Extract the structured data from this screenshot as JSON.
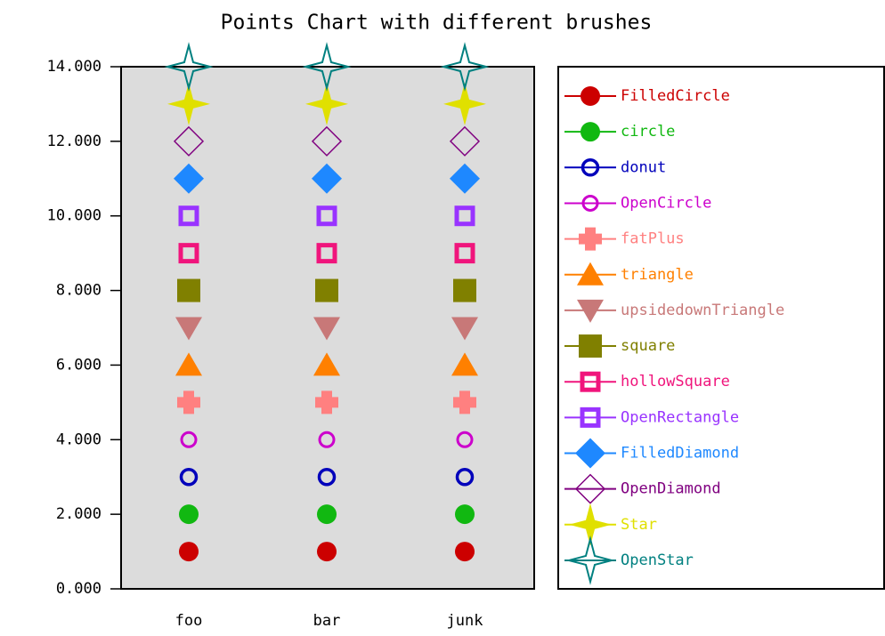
{
  "chart_data": {
    "type": "scatter",
    "title": "Points Chart with different brushes",
    "categories": [
      "foo",
      "bar",
      "junk"
    ],
    "ylim": [
      0,
      14
    ],
    "yticks": [
      {
        "value": 0,
        "label": "0.000"
      },
      {
        "value": 2,
        "label": "2.000"
      },
      {
        "value": 4,
        "label": "4.000"
      },
      {
        "value": 6,
        "label": "6.000"
      },
      {
        "value": 8,
        "label": "8.000"
      },
      {
        "value": 10,
        "label": "10.000"
      },
      {
        "value": 12,
        "label": "12.000"
      },
      {
        "value": 14,
        "label": "14.000"
      }
    ],
    "legend": "right",
    "series": [
      {
        "name": "FilledCircle",
        "color": "#cc0000",
        "values": [
          1,
          1,
          1
        ]
      },
      {
        "name": "circle",
        "color": "#11b811",
        "values": [
          2,
          2,
          2
        ]
      },
      {
        "name": "donut",
        "color": "#0000bb",
        "values": [
          3,
          3,
          3
        ]
      },
      {
        "name": "OpenCircle",
        "color": "#cc00cc",
        "values": [
          4,
          4,
          4
        ]
      },
      {
        "name": "fatPlus",
        "color": "#ff8080",
        "values": [
          5,
          5,
          5
        ]
      },
      {
        "name": "triangle",
        "color": "#ff8000",
        "values": [
          6,
          6,
          6
        ]
      },
      {
        "name": "upsidedownTriangle",
        "color": "#c87878",
        "values": [
          7,
          7,
          7
        ]
      },
      {
        "name": "square",
        "color": "#808000",
        "values": [
          8,
          8,
          8
        ]
      },
      {
        "name": "hollowSquare",
        "color": "#f0157c",
        "values": [
          9,
          9,
          9
        ]
      },
      {
        "name": "OpenRectangle",
        "color": "#9933ff",
        "values": [
          10,
          10,
          10
        ]
      },
      {
        "name": "FilledDiamond",
        "color": "#1e88ff",
        "values": [
          11,
          11,
          11
        ]
      },
      {
        "name": "OpenDiamond",
        "color": "#800080",
        "values": [
          12,
          12,
          12
        ]
      },
      {
        "name": "Star",
        "color": "#e0e000",
        "values": [
          13,
          13,
          13
        ]
      },
      {
        "name": "OpenStar",
        "color": "#008080",
        "values": [
          14,
          14,
          14
        ]
      }
    ]
  }
}
